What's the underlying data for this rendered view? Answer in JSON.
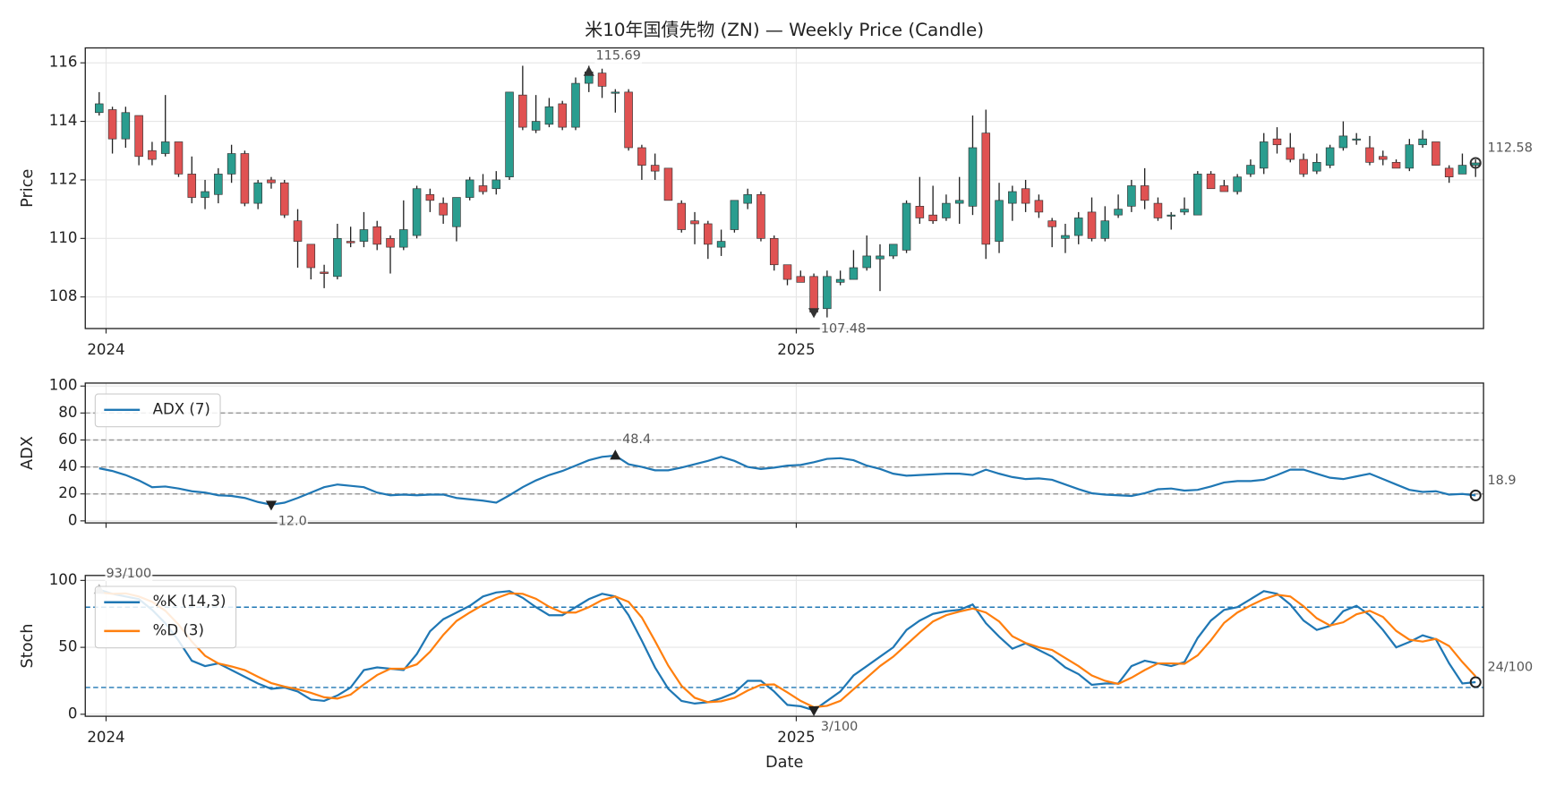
{
  "chart_data": [
    {
      "type": "candlestick",
      "title": "米10年国債先物 (ZN) — Weekly Price (Candle)",
      "ylabel": "Price",
      "open": [
        114.3,
        114.4,
        113.4,
        114.2,
        113.0,
        112.9,
        113.3,
        112.2,
        111.4,
        111.5,
        112.2,
        112.9,
        111.2,
        112.0,
        111.9,
        110.6,
        109.8,
        108.85,
        108.7,
        109.9,
        109.9,
        110.4,
        110.0,
        109.7,
        110.1,
        111.5,
        111.2,
        110.4,
        111.4,
        111.8,
        111.7,
        112.1,
        114.9,
        113.7,
        113.9,
        114.6,
        113.8,
        115.3,
        115.65,
        115.0,
        115.0,
        113.1,
        112.5,
        112.4,
        111.2,
        110.6,
        110.5,
        109.7,
        110.3,
        111.2,
        111.5,
        110.0,
        109.1,
        108.7,
        108.7,
        107.6,
        108.5,
        108.6,
        109.0,
        109.3,
        109.4,
        109.6,
        111.1,
        110.8,
        110.7,
        111.2,
        111.1,
        113.6,
        109.9,
        111.2,
        111.7,
        111.3,
        110.6,
        110.0,
        110.1,
        110.9,
        110.0,
        110.8,
        111.1,
        111.8,
        111.2,
        110.8,
        110.9,
        110.8,
        112.2,
        111.8,
        111.6,
        112.2,
        112.4,
        113.4,
        113.1,
        112.7,
        112.3,
        112.5,
        113.1,
        113.4,
        113.1,
        112.8,
        112.6,
        112.4,
        113.2,
        113.3,
        112.4,
        112.2,
        112.5
      ],
      "high": [
        115.0,
        114.5,
        114.5,
        114.2,
        113.3,
        114.9,
        113.3,
        112.8,
        112.0,
        112.4,
        113.2,
        113.0,
        112.0,
        112.1,
        112.0,
        111.0,
        109.8,
        109.1,
        110.5,
        110.4,
        110.9,
        110.6,
        110.1,
        111.3,
        111.8,
        111.7,
        111.4,
        111.4,
        112.1,
        112.2,
        112.3,
        115.0,
        115.9,
        114.9,
        114.8,
        114.7,
        115.5,
        115.9,
        115.8,
        115.1,
        115.1,
        113.2,
        112.9,
        112.4,
        111.3,
        110.9,
        110.6,
        110.3,
        111.3,
        111.7,
        111.6,
        110.1,
        109.1,
        108.9,
        108.8,
        108.9,
        108.9,
        109.6,
        110.1,
        109.8,
        109.8,
        111.3,
        112.1,
        111.8,
        111.5,
        112.1,
        114.2,
        114.4,
        111.9,
        111.8,
        112.0,
        111.5,
        110.7,
        110.5,
        110.9,
        111.4,
        111.1,
        111.5,
        112.0,
        112.4,
        111.4,
        110.9,
        111.4,
        112.3,
        112.3,
        112.0,
        112.2,
        112.7,
        113.6,
        113.8,
        113.6,
        112.9,
        112.9,
        113.2,
        114.0,
        113.6,
        113.5,
        113.0,
        112.7,
        113.4,
        113.7,
        113.3,
        112.5,
        112.9,
        112.7
      ],
      "low": [
        114.2,
        112.9,
        113.1,
        112.5,
        112.5,
        112.8,
        112.1,
        111.2,
        111.0,
        111.2,
        111.9,
        111.1,
        111.0,
        111.7,
        110.7,
        109.0,
        108.6,
        108.3,
        108.6,
        109.7,
        109.7,
        109.6,
        108.8,
        109.6,
        110.0,
        110.9,
        110.5,
        109.9,
        111.3,
        111.5,
        111.5,
        112.0,
        113.7,
        113.6,
        113.8,
        113.7,
        113.7,
        115.0,
        114.8,
        114.3,
        113.0,
        112.0,
        112.0,
        111.3,
        110.2,
        109.8,
        109.3,
        109.4,
        110.2,
        111.0,
        109.9,
        108.9,
        108.4,
        108.5,
        107.4,
        107.3,
        108.4,
        108.6,
        108.9,
        108.2,
        109.3,
        109.5,
        110.5,
        110.5,
        110.6,
        110.5,
        110.8,
        109.3,
        109.5,
        110.6,
        110.9,
        110.7,
        109.7,
        109.5,
        109.8,
        109.9,
        109.9,
        110.7,
        110.9,
        111.0,
        110.6,
        110.3,
        110.8,
        110.8,
        111.7,
        111.6,
        111.5,
        112.1,
        112.2,
        112.9,
        112.6,
        112.1,
        112.2,
        112.4,
        113.0,
        113.2,
        112.5,
        112.5,
        112.4,
        112.3,
        113.1,
        112.5,
        111.9,
        112.2,
        112.1
      ],
      "close": [
        114.6,
        113.4,
        114.3,
        112.8,
        112.7,
        113.3,
        112.2,
        111.4,
        111.6,
        112.2,
        112.9,
        111.2,
        111.9,
        111.9,
        110.8,
        109.9,
        109.0,
        108.8,
        110.0,
        109.85,
        110.3,
        109.8,
        109.7,
        110.3,
        111.7,
        111.3,
        110.8,
        111.4,
        112.0,
        111.6,
        112.0,
        115.0,
        113.8,
        114.0,
        114.5,
        113.8,
        115.3,
        115.69,
        115.2,
        115.0,
        113.1,
        112.5,
        112.3,
        111.3,
        110.3,
        110.5,
        109.8,
        109.9,
        111.3,
        111.5,
        110.0,
        109.1,
        108.6,
        108.5,
        107.48,
        108.7,
        108.6,
        109.0,
        109.4,
        109.4,
        109.8,
        111.2,
        110.7,
        110.6,
        111.2,
        111.3,
        113.1,
        109.8,
        111.3,
        111.6,
        111.2,
        110.9,
        110.4,
        110.1,
        110.7,
        110.0,
        110.6,
        111.0,
        111.8,
        111.3,
        110.7,
        110.8,
        111.0,
        112.2,
        111.7,
        111.6,
        112.1,
        112.5,
        113.3,
        113.2,
        112.7,
        112.2,
        112.6,
        113.1,
        113.5,
        113.4,
        112.6,
        112.7,
        112.4,
        113.2,
        113.4,
        112.5,
        112.1,
        112.5,
        112.58
      ],
      "up_color": "#2a9d8f",
      "down_color": "#e05252",
      "ylim": [
        106.92,
        116.51
      ],
      "yticks": [
        108,
        110,
        112,
        114,
        116
      ],
      "xlim": [
        -1.05,
        104.6
      ],
      "xticks": [
        {
          "value": 0.52,
          "label": "2024"
        },
        {
          "value": 52.67,
          "label": "2025"
        }
      ],
      "grid": true,
      "annotations": [
        {
          "x": 37,
          "value": 115.69,
          "label": "115.69",
          "marker": "triangle-up",
          "color": "#333333"
        },
        {
          "x": 54,
          "value": 107.48,
          "label": "107.48",
          "marker": "triangle-down",
          "color": "#333333"
        },
        {
          "x": 104,
          "value": 112.58,
          "label": "112.58",
          "marker": "circle",
          "color": "#333333"
        }
      ]
    },
    {
      "type": "line",
      "ylabel": "ADX",
      "series": [
        {
          "name": "ADX (7)",
          "color": "#1f77b4",
          "values": [
            39,
            37,
            34,
            30,
            25,
            25.5,
            24,
            22,
            21,
            19,
            18.5,
            17,
            14,
            12.0,
            13.5,
            17,
            21,
            25,
            27,
            26,
            25,
            21,
            19,
            19.5,
            19,
            19.5,
            19.5,
            17,
            16,
            15,
            13.5,
            19,
            25,
            30,
            34,
            37,
            41,
            45,
            47.5,
            48.4,
            42,
            40,
            37.5,
            37.5,
            39.5,
            42,
            44.5,
            47.5,
            44.5,
            40,
            38.5,
            39.5,
            41,
            41.5,
            43.5,
            46,
            46.5,
            45,
            41,
            38.5,
            35,
            33.5,
            34,
            34.5,
            35,
            35,
            34,
            38,
            35,
            32.5,
            31,
            31.5,
            30.5,
            27,
            23.5,
            20.5,
            19.5,
            19,
            18.5,
            20.5,
            23.5,
            24,
            22.5,
            23,
            25.5,
            28.5,
            29.5,
            29.5,
            30.5,
            34,
            38,
            38,
            35,
            32,
            31,
            33,
            35,
            31,
            27,
            23,
            21.5,
            22,
            19.5,
            20,
            18.9
          ]
        }
      ],
      "ylim": [
        -1.5,
        102.2
      ],
      "yticks": [
        0,
        20,
        40,
        60,
        80,
        100
      ],
      "hlines": [
        20,
        40,
        60,
        80
      ],
      "hline_color": "#999999",
      "xlim": [
        -1.05,
        104.6
      ],
      "xticks": [
        0.52,
        52.67
      ],
      "xtick_labels": false,
      "grid": true,
      "legend": "upper left",
      "annotations": [
        {
          "x": 39,
          "value": 48.4,
          "label": "48.4",
          "marker": "triangle-up",
          "color": "#222222"
        },
        {
          "x": 13,
          "value": 12,
          "label": "12.0",
          "marker": "triangle-down",
          "color": "#222222"
        },
        {
          "x": 104,
          "value": 18.9,
          "label": "18.9",
          "marker": "circle",
          "color": "#222222"
        }
      ]
    },
    {
      "type": "line",
      "ylabel": "Stoch",
      "xlabel": "Date",
      "series": [
        {
          "name": "%K (14,3)",
          "color": "#1f77b4",
          "values": [
            93,
            90,
            88,
            86,
            78,
            68,
            55,
            40,
            36,
            38,
            33,
            28,
            23,
            19,
            20,
            17,
            11,
            10,
            14,
            20,
            33,
            35,
            34,
            33,
            45,
            62,
            71,
            76,
            81,
            88,
            91,
            92,
            87,
            80,
            74,
            74,
            80,
            86,
            90,
            88,
            74,
            55,
            35,
            19,
            10,
            8,
            9,
            12,
            16,
            25,
            25,
            17,
            7,
            6,
            3,
            10,
            17,
            29,
            36,
            43,
            50,
            63,
            70,
            75,
            77,
            78,
            82,
            68,
            58,
            49,
            53,
            48,
            43,
            35,
            30,
            22,
            23,
            23,
            36,
            40,
            38,
            36,
            39,
            57,
            70,
            78,
            80,
            86,
            92,
            90,
            82,
            70,
            63,
            66,
            77,
            81,
            74,
            63,
            50,
            54,
            59,
            56,
            38,
            23,
            24
          ]
        },
        {
          "name": "%D (3)",
          "color": "#ff7f0e",
          "values": [
            91,
            90,
            90.3,
            88,
            84,
            77.3,
            67,
            54.3,
            43.7,
            38,
            35.7,
            33,
            28,
            23.3,
            20.7,
            18.7,
            16,
            12.7,
            11.7,
            14.7,
            22.3,
            29.3,
            34,
            34,
            37.3,
            46.7,
            59.3,
            69.7,
            76,
            81.7,
            86.7,
            90.3,
            90,
            86.3,
            80.3,
            76,
            76,
            80,
            85.3,
            88,
            84,
            72.3,
            54.7,
            36.3,
            21.3,
            12.3,
            9,
            9.7,
            12.3,
            17.7,
            22,
            22.3,
            16.3,
            10,
            5.3,
            6.3,
            10,
            18.7,
            27.3,
            36,
            43,
            52,
            61,
            69.3,
            74,
            76.7,
            79,
            76,
            69.3,
            58.3,
            53.3,
            50,
            48,
            42,
            36,
            29,
            25,
            22.7,
            27.3,
            33,
            38,
            38,
            37.7,
            44,
            55.3,
            68.3,
            76,
            81.3,
            86,
            89.3,
            88,
            80.7,
            71.7,
            66.3,
            68.7,
            74.7,
            77.3,
            72.7,
            62.3,
            55.7,
            54.3,
            56.3,
            51,
            39,
            28.3
          ]
        }
      ],
      "ylim": [
        -1.5,
        103.7
      ],
      "yticks": [
        0,
        50,
        100
      ],
      "hlines": [
        20,
        80
      ],
      "hline_color": "#1f77b4",
      "xlim": [
        -1.05,
        104.6
      ],
      "xticks": [
        {
          "value": 0.52,
          "label": "2024"
        },
        {
          "value": 52.67,
          "label": "2025"
        }
      ],
      "grid": true,
      "legend": "upper left",
      "annotations": [
        {
          "x": 0,
          "value": 93,
          "label": "93/100",
          "marker": "triangle-up",
          "color": "#aaaaaa"
        },
        {
          "x": 54,
          "value": 3,
          "label": "3/100",
          "marker": "triangle-down",
          "color": "#222222"
        },
        {
          "x": 104,
          "value": 24,
          "label": "24/100",
          "marker": "circle",
          "color": "#222222"
        }
      ]
    }
  ]
}
